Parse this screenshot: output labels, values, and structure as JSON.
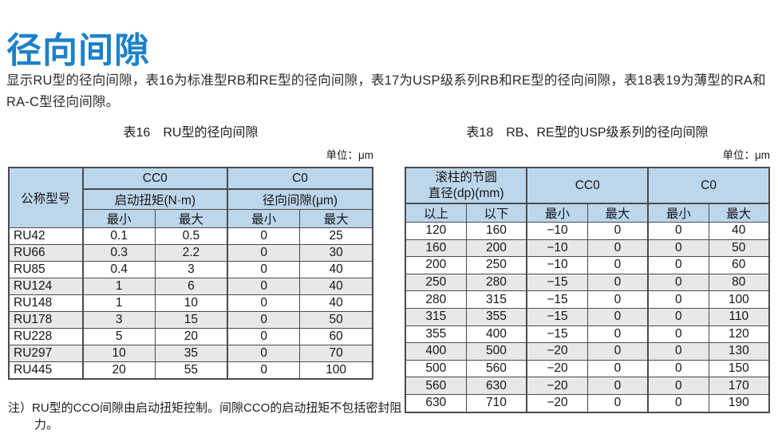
{
  "page": {
    "title": "径向间隙",
    "intro": "显示RU型的径向间隙，表16为标准型RB和RE型的径向间隙，表17为USP级系列RB和RE型的径向间隙，表18表19为薄型的RA和RA-C型径向间隙。"
  },
  "colors": {
    "accent_blue": "#1C82C8",
    "table_header_fill": "#BCD6EC",
    "alt_row_fill": "#E8E8E8",
    "table_border": "#4B4B4D"
  },
  "table16": {
    "caption": "表16　RU型的径向间隙",
    "unit_label": "单位：μm",
    "header": {
      "col_model": "公称型号",
      "group_cc0": "CC0",
      "group_c0": "C0",
      "sub_cc0": "启动扭矩(N·m)",
      "sub_c0": "径向间隙(μm)",
      "min": "最小",
      "max": "最大"
    },
    "rows": [
      [
        "RU42",
        "0.1",
        "0.5",
        "0",
        "25"
      ],
      [
        "RU66",
        "0.3",
        "2.2",
        "0",
        "30"
      ],
      [
        "RU85",
        "0.4",
        "3",
        "0",
        "40"
      ],
      [
        "RU124",
        "1",
        "6",
        "0",
        "40"
      ],
      [
        "RU148",
        "1",
        "10",
        "0",
        "40"
      ],
      [
        "RU178",
        "3",
        "15",
        "0",
        "50"
      ],
      [
        "RU228",
        "5",
        "20",
        "0",
        "60"
      ],
      [
        "RU297",
        "10",
        "35",
        "0",
        "70"
      ],
      [
        "RU445",
        "20",
        "55",
        "0",
        "100"
      ]
    ],
    "note": "注）RU型的CCO间隙由启动扭矩控制。间隙CCO的启动扭矩不包括密封阻力。"
  },
  "table18": {
    "caption": "表18　RB、RE型的USP级系列的径向间隙",
    "unit_label": "单位：μm",
    "header": {
      "col_dp_line1": "滚柱的节圆",
      "col_dp_line2": "直径(dp)(mm)",
      "group_cc0": "CC0",
      "group_c0": "C0",
      "over": "以上",
      "under": "以下",
      "min": "最小",
      "max": "最大"
    },
    "rows": [
      [
        "120",
        "160",
        "−10",
        "0",
        "0",
        "40"
      ],
      [
        "160",
        "200",
        "−10",
        "0",
        "0",
        "50"
      ],
      [
        "200",
        "250",
        "−10",
        "0",
        "0",
        "60"
      ],
      [
        "250",
        "280",
        "−15",
        "0",
        "0",
        "80"
      ],
      [
        "280",
        "315",
        "−15",
        "0",
        "0",
        "100"
      ],
      [
        "315",
        "355",
        "−15",
        "0",
        "0",
        "110"
      ],
      [
        "355",
        "400",
        "−15",
        "0",
        "0",
        "120"
      ],
      [
        "400",
        "500",
        "−20",
        "0",
        "0",
        "130"
      ],
      [
        "500",
        "560",
        "−20",
        "0",
        "0",
        "150"
      ],
      [
        "560",
        "630",
        "−20",
        "0",
        "0",
        "170"
      ],
      [
        "630",
        "710",
        "−20",
        "0",
        "0",
        "190"
      ]
    ]
  }
}
